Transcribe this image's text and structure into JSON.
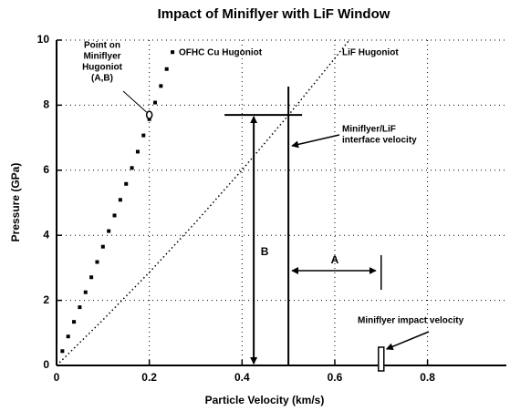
{
  "chart_data": {
    "type": "scatter",
    "title": "Impact of Miniflyer with LiF Window",
    "x_label": "Particle Velocity (km/s)",
    "y_label": "Pressure (GPa)",
    "xlim": [
      0,
      0.97
    ],
    "ylim": [
      0,
      10
    ],
    "xticks": [
      0,
      0.2,
      0.4,
      0.6,
      0.8
    ],
    "yticks": [
      0,
      2,
      4,
      6,
      8,
      10
    ],
    "grid": true,
    "series": [
      {
        "name": "OFHC Cu Hugoniot",
        "color": "#000000",
        "style": "markers",
        "x": [
          0.0125,
          0.025,
          0.0375,
          0.05,
          0.0625,
          0.075,
          0.0875,
          0.1,
          0.1125,
          0.125,
          0.1375,
          0.15,
          0.1625,
          0.175,
          0.1875,
          0.2,
          0.2125,
          0.225,
          0.2375,
          0.25
        ],
        "values": [
          0.44,
          0.89,
          1.34,
          1.79,
          2.25,
          2.71,
          3.18,
          3.65,
          4.13,
          4.61,
          5.09,
          5.58,
          6.07,
          6.57,
          7.07,
          7.57,
          8.08,
          8.59,
          9.11,
          9.63
        ]
      },
      {
        "name": "LiF Hugoniot",
        "color": "#000000",
        "style": "dotted",
        "x": [
          0,
          0.1,
          0.2,
          0.3,
          0.4,
          0.5,
          0.6,
          0.63
        ],
        "values": [
          0,
          1.4,
          2.86,
          4.4,
          6.01,
          7.69,
          9.44,
          9.98
        ]
      }
    ],
    "hugoniot_point": {
      "x": 0.2,
      "y": 7.7,
      "label": [
        "Point on",
        "Miniflyer",
        "Hugoniot",
        "(A,B)"
      ]
    },
    "interface": {
      "x": 0.5,
      "y": 7.7,
      "label": [
        "Miniflyer/LiF",
        "interface velocity"
      ]
    },
    "impact": {
      "x": 0.7,
      "label": "Miniflyer impact velocity"
    },
    "label_a": "A",
    "label_b": "B"
  }
}
